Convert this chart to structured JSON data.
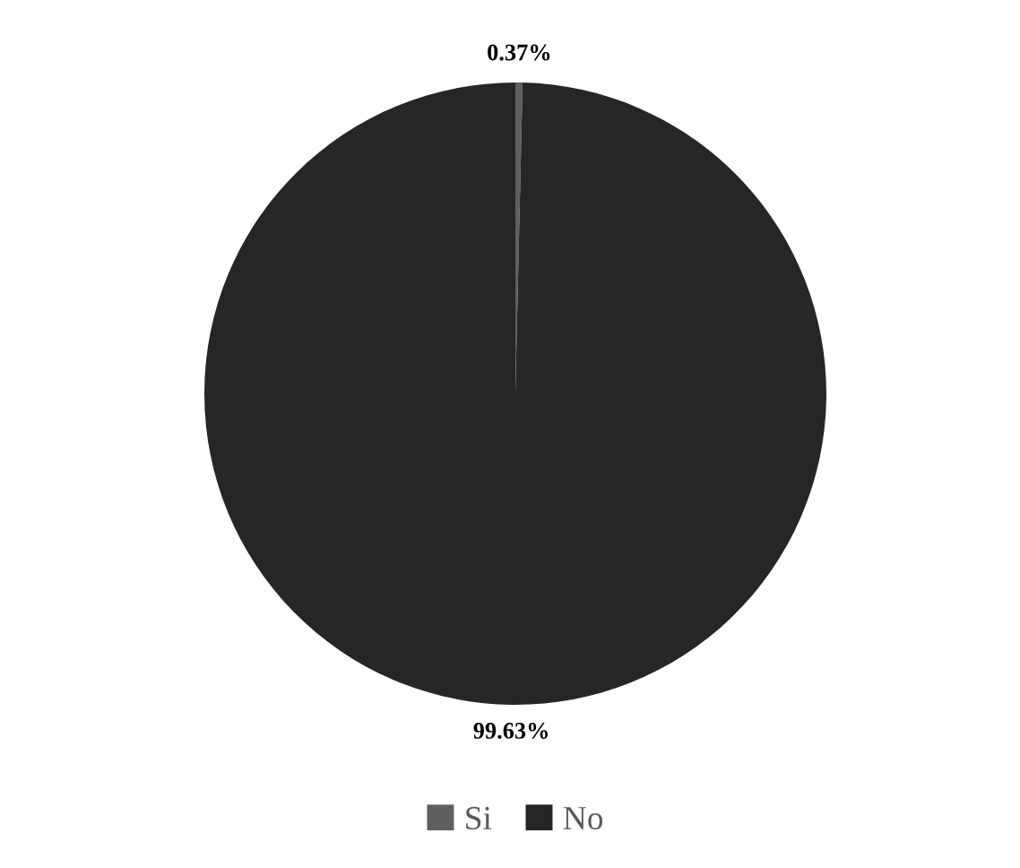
{
  "chart_data": {
    "type": "pie",
    "categories": [
      "Si",
      "No"
    ],
    "values": [
      0.37,
      99.63
    ],
    "colors": [
      "#5f5f5f",
      "#262626"
    ],
    "value_labels": [
      "0.37%",
      "99.63%"
    ],
    "legend": "bottom"
  }
}
